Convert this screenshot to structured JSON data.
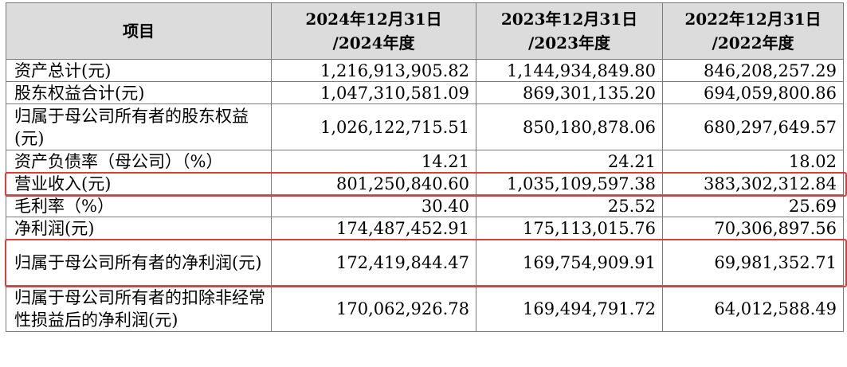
{
  "table": {
    "headers": [
      [
        "项目"
      ],
      [
        "2024年12月31日",
        "/2024年度"
      ],
      [
        "2023年12月31日",
        "/2023年度"
      ],
      [
        "2022年12月31日",
        "/2022年度"
      ]
    ],
    "rows": [
      {
        "label": "资产总计(元)",
        "values": [
          "1,216,913,905.82",
          "1,144,934,849.80",
          "846,208,257.29"
        ]
      },
      {
        "label": "股东权益合计(元)",
        "values": [
          "1,047,310,581.09",
          "869,301,135.20",
          "694,059,800.86"
        ]
      },
      {
        "label": "归属于母公司所有者的股东权益(元)",
        "values": [
          "1,026,122,715.51",
          "850,180,878.06",
          "680,297,649.57"
        ]
      },
      {
        "label": "资产负债率（母公司）（%）",
        "values": [
          "14.21",
          "24.21",
          "18.02"
        ]
      },
      {
        "label": "营业收入(元)",
        "values": [
          "801,250,840.60",
          "1,035,109,597.38",
          "383,302,312.84"
        ]
      },
      {
        "label": "毛利率（%）",
        "values": [
          "30.40",
          "25.52",
          "25.69"
        ]
      },
      {
        "label": "净利润(元)",
        "values": [
          "174,487,452.91",
          "175,113,015.76",
          "70,306,897.56"
        ]
      },
      {
        "label": "归属于母公司所有者的净利润(元)",
        "values": [
          "172,419,844.47",
          "169,754,909.91",
          "69,981,352.71"
        ]
      },
      {
        "label": "归属于母公司所有者的扣除非经常性损益后的净利润(元)",
        "values": [
          "170,062,926.78",
          "169,494,791.72",
          "64,012,588.49"
        ]
      }
    ]
  },
  "highlights": {
    "color": "#e03a3a",
    "rows": [
      "营业收入(元)",
      "归属于母公司所有者的净利润(元)"
    ]
  }
}
